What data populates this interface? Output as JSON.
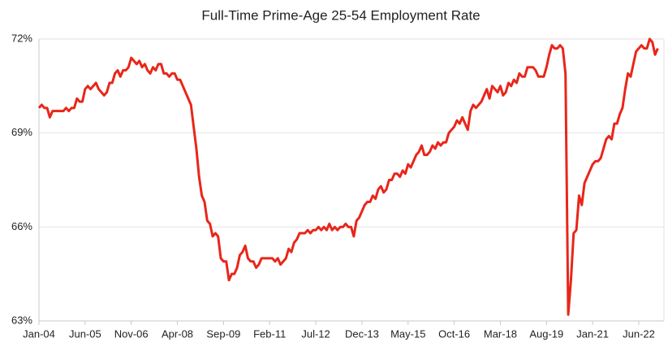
{
  "chart_data": {
    "type": "line",
    "title": "Full-Time Prime-Age 25-54 Employment Rate",
    "categories": [
      "Jan-04",
      null,
      null,
      null,
      null,
      null,
      null,
      null,
      null,
      null,
      null,
      null,
      null,
      null,
      null,
      null,
      null,
      "Jun-05",
      null,
      null,
      null,
      null,
      null,
      null,
      null,
      null,
      null,
      null,
      null,
      null,
      null,
      null,
      null,
      null,
      "Nov-06",
      null,
      null,
      null,
      null,
      null,
      null,
      null,
      null,
      null,
      null,
      null,
      null,
      null,
      null,
      null,
      null,
      "Apr-08",
      null,
      null,
      null,
      null,
      null,
      null,
      null,
      null,
      null,
      null,
      null,
      null,
      null,
      null,
      null,
      null,
      "Sep-09",
      null,
      null,
      null,
      null,
      null,
      null,
      null,
      null,
      null,
      null,
      null,
      null,
      null,
      null,
      null,
      null,
      "Feb-11",
      null,
      null,
      null,
      null,
      null,
      null,
      null,
      null,
      null,
      null,
      null,
      null,
      null,
      null,
      null,
      null,
      "Jul-12",
      null,
      null,
      null,
      null,
      null,
      null,
      null,
      null,
      null,
      null,
      null,
      null,
      null,
      null,
      null,
      null,
      "Dec-13",
      null,
      null,
      null,
      null,
      null,
      null,
      null,
      null,
      null,
      null,
      null,
      null,
      null,
      null,
      null,
      null,
      "May-15",
      null,
      null,
      null,
      null,
      null,
      null,
      null,
      null,
      null,
      null,
      null,
      null,
      null,
      null,
      null,
      null,
      "Oct-16",
      null,
      null,
      null,
      null,
      null,
      null,
      null,
      null,
      null,
      null,
      null,
      null,
      null,
      null,
      null,
      null,
      "Mar-18",
      null,
      null,
      null,
      null,
      null,
      null,
      null,
      null,
      null,
      null,
      null,
      null,
      null,
      null,
      null,
      null,
      "Aug-19",
      null,
      null,
      null,
      null,
      null,
      null,
      null,
      null,
      null,
      null,
      null,
      null,
      null,
      null,
      null,
      null,
      "Jan-21",
      null,
      null,
      null,
      null,
      null,
      null,
      null,
      null,
      null,
      null,
      null,
      null,
      null,
      null,
      null,
      null,
      "Jun-22",
      null,
      null,
      null,
      null,
      null,
      null,
      null
    ],
    "values": [
      69.8,
      69.9,
      69.8,
      69.8,
      69.5,
      69.7,
      69.7,
      69.7,
      69.7,
      69.7,
      69.8,
      69.7,
      69.8,
      69.8,
      70.1,
      70.0,
      70.0,
      70.4,
      70.5,
      70.4,
      70.5,
      70.6,
      70.4,
      70.3,
      70.2,
      70.3,
      70.6,
      70.6,
      70.9,
      71.0,
      70.8,
      71.0,
      71.0,
      71.1,
      71.4,
      71.3,
      71.2,
      71.3,
      71.1,
      71.2,
      71.0,
      70.9,
      71.1,
      71.0,
      71.2,
      71.2,
      70.9,
      70.9,
      70.8,
      70.9,
      70.9,
      70.7,
      70.7,
      70.5,
      70.3,
      70.1,
      69.9,
      69.2,
      68.5,
      67.6,
      67.0,
      66.8,
      66.2,
      66.1,
      65.7,
      65.8,
      65.7,
      65.0,
      64.9,
      64.9,
      64.3,
      64.5,
      64.5,
      64.7,
      65.1,
      65.2,
      65.4,
      65.0,
      64.9,
      64.9,
      64.7,
      64.8,
      65.0,
      65.0,
      65.0,
      65.0,
      65.0,
      64.9,
      65.0,
      64.8,
      64.9,
      65.0,
      65.3,
      65.2,
      65.5,
      65.6,
      65.8,
      65.8,
      65.8,
      65.9,
      65.8,
      65.9,
      65.9,
      66.0,
      65.9,
      66.0,
      65.9,
      66.1,
      65.9,
      66.0,
      65.9,
      66.0,
      66.0,
      66.1,
      66.0,
      66.0,
      65.7,
      66.2,
      66.3,
      66.5,
      66.7,
      66.8,
      66.8,
      67.0,
      66.9,
      67.2,
      67.3,
      67.1,
      67.2,
      67.5,
      67.5,
      67.7,
      67.7,
      67.6,
      67.8,
      67.7,
      68.0,
      67.9,
      68.1,
      68.3,
      68.4,
      68.6,
      68.3,
      68.3,
      68.4,
      68.6,
      68.5,
      68.7,
      68.6,
      68.7,
      68.7,
      69.0,
      69.1,
      69.2,
      69.4,
      69.3,
      69.5,
      69.3,
      69.1,
      69.7,
      69.9,
      69.8,
      69.9,
      70.0,
      70.2,
      70.4,
      70.1,
      70.5,
      70.4,
      70.3,
      70.5,
      70.2,
      70.3,
      70.6,
      70.5,
      70.7,
      70.6,
      70.9,
      70.8,
      70.8,
      71.1,
      71.1,
      71.1,
      71.0,
      70.8,
      70.8,
      70.8,
      71.1,
      71.5,
      71.8,
      71.7,
      71.7,
      71.8,
      71.7,
      70.9,
      63.2,
      64.3,
      65.8,
      65.9,
      67.0,
      66.7,
      67.4,
      67.6,
      67.8,
      68.0,
      68.1,
      68.1,
      68.2,
      68.5,
      68.8,
      68.9,
      68.8,
      69.3,
      69.3,
      69.6,
      69.8,
      70.4,
      70.9,
      70.8,
      71.2,
      71.6,
      71.7,
      71.8,
      71.7,
      71.7,
      72.0,
      71.9,
      71.5,
      71.7
    ],
    "color": "#e8261a",
    "ylim": [
      63,
      72
    ],
    "yticks": [
      {
        "value": 63,
        "label": "63%"
      },
      {
        "value": 66,
        "label": "66%"
      },
      {
        "value": 69,
        "label": "69%"
      },
      {
        "value": 72,
        "label": "72%"
      }
    ],
    "grid": true
  }
}
